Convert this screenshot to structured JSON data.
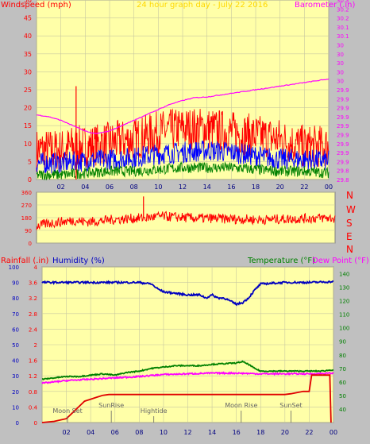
{
  "header": {
    "left_label": "Windspeed (mph)",
    "title": "24 hour graph day - July 22 2016",
    "right_label": "Barometer (.in)"
  },
  "direction_labels": [
    "N",
    "W",
    "S",
    "E",
    "N"
  ],
  "bottom_header": {
    "rainfall_label": "Rainfall (.in)",
    "humidity_label": "Humidity (%)",
    "temperature_label": "Temperature (°F)",
    "dewpoint_label": "Dew Point (°F)"
  },
  "colors": {
    "plot_bg": "#ffffa8",
    "page_bg": "#c0c0c0",
    "windspeed": "#ff0000",
    "gust": "#ff0000",
    "barometer": "#ff00ff",
    "wind_avg": "#0000ff",
    "wind_low": "#008000",
    "direction": "#ff0000",
    "humidity": "#0000c0",
    "temperature": "#008000",
    "dewpoint": "#ff00ff",
    "rainfall": "#e00000",
    "title": "#ffd800",
    "axis_left": "#ff0000",
    "axis_right": "#ff00ff",
    "humidity_axis": "#0000c0",
    "temperature_axis": "#008000",
    "event_text": "#666666"
  },
  "chart_data": [
    {
      "type": "line",
      "title": "24 hour graph day - July 22 2016",
      "xlabel": "",
      "ylabel": "Windspeed (mph)",
      "y2label": "Barometer (.in)",
      "x_ticks": [
        "02",
        "04",
        "06",
        "08",
        "10",
        "12",
        "14",
        "16",
        "18",
        "20",
        "22",
        "00"
      ],
      "xlim": [
        0,
        24
      ],
      "ylim": [
        0,
        50
      ],
      "y_ticks": [
        0,
        5,
        10,
        15,
        20,
        25,
        30,
        35,
        40,
        45,
        50
      ],
      "y2lim": [
        29.8,
        30.3
      ],
      "y2_ticks": [
        "29.8",
        "29.8",
        "29.9",
        "29.9",
        "29.9",
        "29.9",
        "29.9",
        "29.9",
        "29.9",
        "29.9",
        "29.9",
        "30",
        "30",
        "30",
        "30",
        "30",
        "30.1",
        "30.1",
        "30.2",
        "30.2",
        "30.3"
      ],
      "grid": true,
      "series": [
        {
          "axis": "right",
          "x": [
            0,
            1,
            2,
            3,
            4,
            4.5,
            5,
            6,
            7,
            8,
            9,
            10,
            11,
            12,
            13,
            14,
            15,
            16,
            17,
            18,
            19,
            20,
            21,
            22,
            23,
            24
          ],
          "values": [
            29.98,
            29.975,
            29.965,
            29.95,
            29.935,
            29.93,
            29.928,
            29.935,
            29.95,
            29.965,
            29.98,
            29.995,
            30.01,
            30.02,
            30.028,
            30.03,
            30.035,
            30.04,
            30.045,
            30.05,
            30.055,
            30.06,
            30.065,
            30.07,
            30.075,
            30.08
          ]
        },
        {
          "axis": "left",
          "x": [
            0,
            2,
            3,
            3.5,
            4,
            6,
            8,
            10,
            12,
            14,
            16,
            18,
            20,
            22,
            24
          ],
          "values": [
            7,
            7,
            8,
            8,
            8,
            9,
            10,
            12,
            13,
            13,
            12,
            11,
            10,
            8,
            8
          ]
        },
        {
          "axis": "left",
          "x": [
            0,
            2,
            4,
            6,
            8,
            10,
            12,
            14,
            16,
            18,
            20,
            22,
            24
          ],
          "values": [
            4,
            4,
            4.5,
            5,
            5.5,
            6.5,
            7,
            7.5,
            7,
            6,
            5,
            5,
            4.5
          ]
        },
        {
          "axis": "left",
          "x": [
            0,
            2,
            4,
            6,
            8,
            10,
            12,
            14,
            16,
            18,
            20,
            22,
            24
          ],
          "values": [
            1,
            1,
            1.5,
            2,
            2,
            2.5,
            3,
            3,
            3,
            2.5,
            2,
            2,
            1.5
          ]
        }
      ],
      "spike": {
        "x": 3.25,
        "value": 26
      }
    },
    {
      "type": "line",
      "ylabel": "",
      "xlim": [
        0,
        24
      ],
      "ylim": [
        0,
        360
      ],
      "y_ticks": [
        0,
        90,
        180,
        270,
        360
      ],
      "y2_labels": [
        "N",
        "W",
        "S",
        "E",
        "N"
      ],
      "series": [
        {
          "x": [
            0,
            1,
            2,
            3,
            4,
            5,
            6,
            7,
            8,
            9,
            10,
            11,
            12,
            13,
            14,
            15,
            16,
            17,
            18,
            19,
            20,
            21,
            22,
            23,
            24
          ],
          "values": [
            120,
            140,
            150,
            160,
            150,
            155,
            165,
            170,
            175,
            180,
            190,
            185,
            180,
            175,
            175,
            172,
            170,
            168,
            165,
            168,
            170,
            172,
            175,
            178,
            175
          ]
        }
      ],
      "spike": {
        "x": 8.6,
        "value": 330
      }
    },
    {
      "type": "line",
      "x_ticks": [
        "02",
        "04",
        "06",
        "08",
        "10",
        "12",
        "14",
        "16",
        "18",
        "20",
        "22",
        "00"
      ],
      "xlim": [
        0,
        24
      ],
      "y_left_labels": [
        "0",
        "10",
        "20",
        "30",
        "40",
        "50",
        "60",
        "70",
        "80",
        "90",
        "100"
      ],
      "y_rain_labels": [
        "0",
        "0.4",
        "0.8",
        "1.2",
        "1.6",
        "2",
        "2.4",
        "2.8",
        "3.2",
        "3.6",
        "4"
      ],
      "ylim": [
        0,
        100
      ],
      "y2lim": [
        30,
        145
      ],
      "y2_ticks": [
        40,
        50,
        60,
        70,
        80,
        90,
        100,
        110,
        120,
        130,
        140
      ],
      "series": [
        {
          "name": "Humidity (%)",
          "axis": "left",
          "x": [
            0,
            2,
            4,
            6,
            8,
            9,
            9.5,
            10,
            11,
            12,
            13,
            13.5,
            14,
            14.5,
            15,
            15.5,
            16,
            16.5,
            17,
            17.5,
            18,
            20,
            22,
            24
          ],
          "values": [
            90,
            90,
            90,
            90,
            90,
            89,
            86,
            84,
            83,
            82,
            82,
            80,
            82,
            80,
            80,
            78,
            76,
            77,
            80,
            85,
            89,
            90,
            90,
            90.5
          ]
        },
        {
          "name": "Temperature (°F)",
          "axis": "right",
          "x": [
            0,
            1,
            2,
            3,
            4,
            5,
            6,
            7,
            8,
            9,
            10,
            11,
            12,
            13,
            14,
            15,
            16,
            16.5,
            17,
            17.5,
            18,
            19,
            20,
            21,
            22,
            23,
            24
          ],
          "values": [
            62,
            63,
            64,
            64,
            65,
            66,
            65,
            67,
            68,
            70,
            71,
            72,
            72,
            72,
            73,
            73.5,
            74,
            75,
            73,
            70,
            68,
            68,
            68,
            68,
            68,
            68,
            69
          ]
        },
        {
          "name": "Dew Point (°F)",
          "axis": "right",
          "x": [
            0,
            2,
            4,
            6,
            8,
            10,
            12,
            14,
            16,
            18,
            20,
            22,
            24
          ],
          "values": [
            59,
            61,
            62,
            63,
            64,
            65.5,
            66,
            66.5,
            66.5,
            66,
            66,
            66,
            66.5
          ]
        },
        {
          "name": "Rainfall (.in)",
          "axis": "rain",
          "x": [
            0,
            1,
            2,
            2.5,
            3,
            3.5,
            4,
            4.5,
            5,
            5.5,
            6,
            7,
            8,
            20,
            20.5,
            21.5,
            22,
            22.2,
            23.5,
            23.7,
            23.8
          ],
          "values": [
            0,
            0.03,
            0.1,
            0.25,
            0.4,
            0.55,
            0.6,
            0.65,
            0.7,
            0.72,
            0.72,
            0.72,
            0.72,
            0.72,
            0.74,
            0.8,
            0.8,
            1.22,
            1.22,
            1.22,
            0
          ]
        }
      ],
      "events": [
        {
          "label": "Moon Set",
          "x": 2.1
        },
        {
          "label": "SunRise",
          "x": 5.7
        },
        {
          "label": "Hightide",
          "x": 9.2
        },
        {
          "label": "Moon Rise",
          "x": 16.4
        },
        {
          "label": "SunSet",
          "x": 20.5
        }
      ]
    }
  ]
}
